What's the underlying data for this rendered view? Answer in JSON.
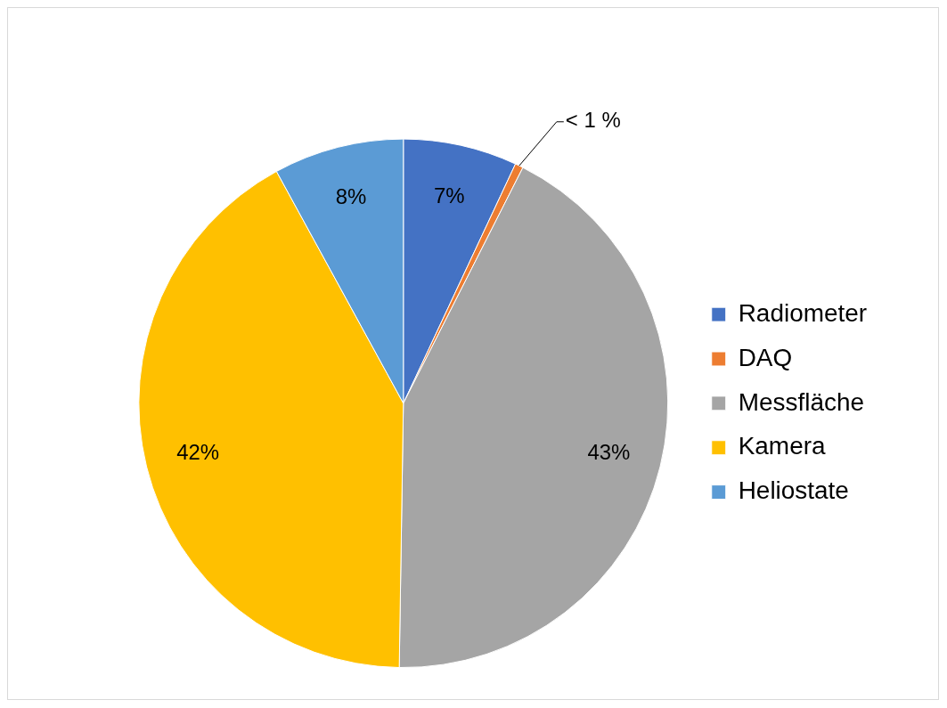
{
  "chart_data": {
    "type": "pie",
    "categories": [
      "Radiometer",
      "DAQ",
      "Messfläche",
      "Kamera",
      "Heliostate"
    ],
    "values": [
      7,
      0.5,
      43,
      42,
      8
    ],
    "colors": [
      "#4472c4",
      "#ed7d31",
      "#a5a5a5",
      "#ffc000",
      "#5b9bd5"
    ],
    "value_labels": [
      "7%",
      "< 1 %",
      "43%",
      "42%",
      "8%"
    ],
    "legend": "right"
  }
}
